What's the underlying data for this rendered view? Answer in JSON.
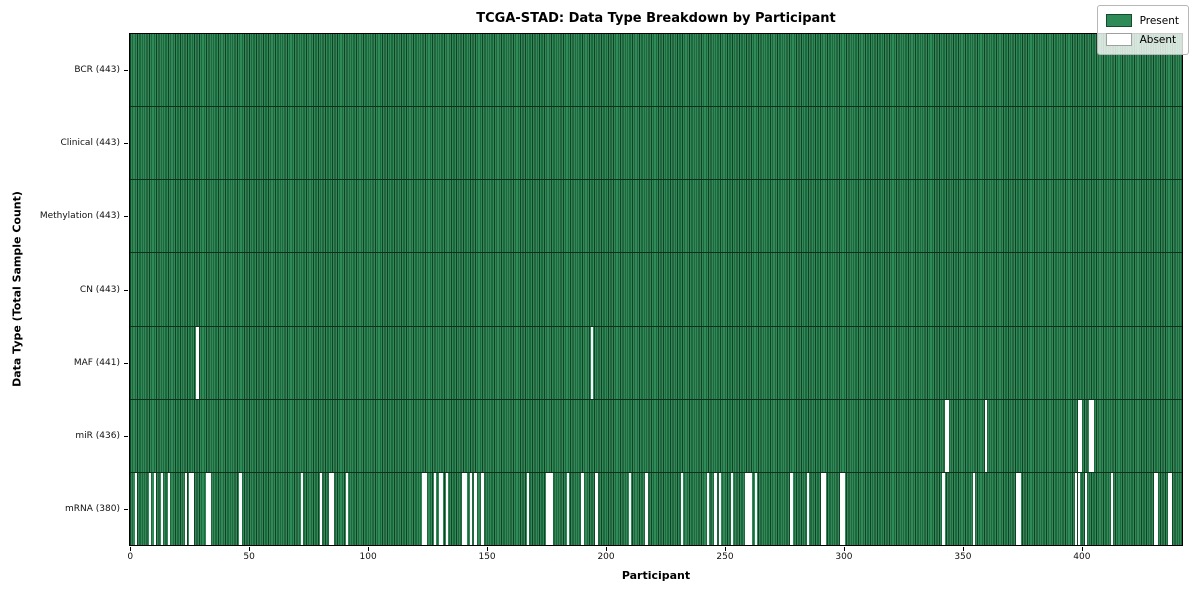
{
  "chart_data": {
    "type": "heatmap",
    "title": "TCGA-STAD: Data Type Breakdown by Participant",
    "xlabel": "Participant",
    "ylabel": "Data Type (Total Sample Count)",
    "x_ticks": [
      0,
      50,
      100,
      150,
      200,
      250,
      300,
      350,
      400
    ],
    "x_range": [
      -0.5,
      442.5
    ],
    "n_participants": 443,
    "grid": false,
    "legend": {
      "position": "upper right",
      "entries": [
        {
          "label": "Present",
          "color": "#2e8b57"
        },
        {
          "label": "Absent",
          "color": "#ffffff"
        }
      ]
    },
    "colors": {
      "present_fill": "#2e8b57",
      "cell_edge": "#144026",
      "row_divider": "#0f3019",
      "spine": "#000000",
      "legend_bg": "rgba(255,255,255,0.8)"
    },
    "rows": [
      {
        "label": "BCR (443)",
        "present_count": 443,
        "absent_participants": []
      },
      {
        "label": "Clinical (443)",
        "present_count": 443,
        "absent_participants": []
      },
      {
        "label": "Methylation (443)",
        "present_count": 443,
        "absent_participants": []
      },
      {
        "label": "CN (443)",
        "present_count": 443,
        "absent_participants": []
      },
      {
        "label": "MAF (441)",
        "present_count": 441,
        "absent_participants": [
          28,
          194
        ]
      },
      {
        "label": "miR (436)",
        "present_count": 436,
        "absent_participants": [
          343,
          344,
          360,
          399,
          400,
          404,
          405
        ]
      },
      {
        "label": "mRNA (380)",
        "present_count": 380,
        "absent_participants": [
          2,
          8,
          10,
          13,
          16,
          23,
          25,
          26,
          32,
          33,
          46,
          72,
          80,
          84,
          85,
          91,
          123,
          124,
          128,
          130,
          131,
          133,
          140,
          141,
          143,
          145,
          148,
          167,
          175,
          176,
          177,
          184,
          190,
          196,
          210,
          217,
          232,
          243,
          246,
          248,
          253,
          259,
          260,
          261,
          263,
          278,
          285,
          291,
          292,
          299,
          300,
          342,
          355,
          373,
          374,
          398,
          399,
          402,
          413,
          431,
          432,
          437,
          438
        ]
      }
    ]
  }
}
